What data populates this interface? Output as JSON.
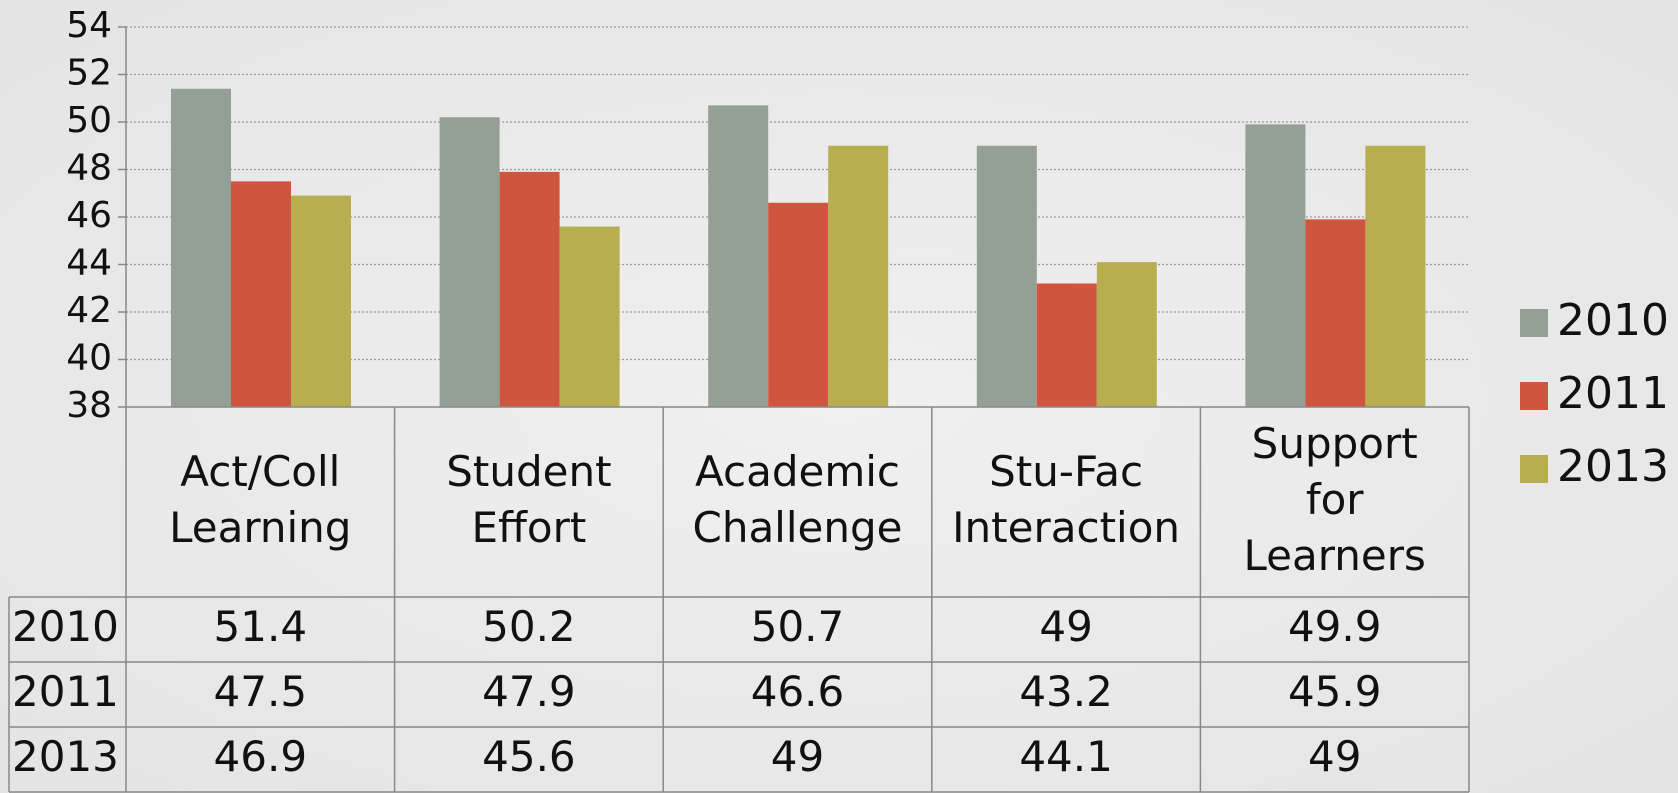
{
  "chart_data": {
    "type": "bar",
    "categories": [
      "Act/Coll Learning",
      "Student Effort",
      "Academic Challenge",
      "Stu-Fac Interaction",
      "Support for Learners"
    ],
    "series": [
      {
        "name": "2010",
        "color": "#949f96",
        "values": [
          51.4,
          50.2,
          50.7,
          49,
          49.9
        ]
      },
      {
        "name": "2011",
        "color": "#d0553f",
        "values": [
          47.5,
          47.9,
          46.6,
          43.2,
          45.9
        ]
      },
      {
        "name": "2013",
        "color": "#b8ae50",
        "values": [
          46.9,
          45.6,
          49,
          44.1,
          49
        ]
      }
    ],
    "ylim": [
      38,
      54
    ],
    "yticks": [
      38,
      40,
      42,
      44,
      46,
      48,
      50,
      52,
      54
    ],
    "grid": true,
    "legend": "right"
  }
}
